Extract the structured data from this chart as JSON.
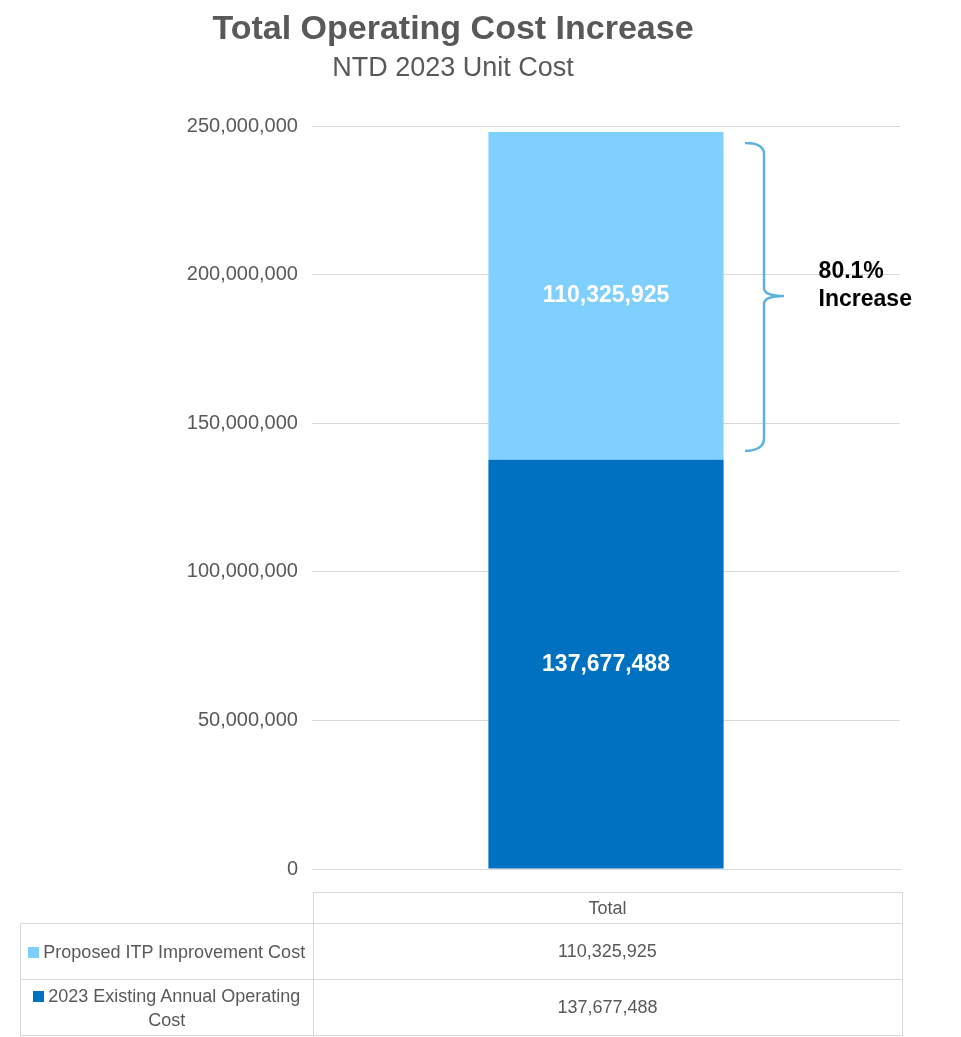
{
  "chart_data": {
    "type": "bar",
    "title": "Total Operating Cost Increase",
    "subtitle": "NTD 2023 Unit Cost",
    "categories": [
      "Total"
    ],
    "stacked": true,
    "series": [
      {
        "name": "2023 Existing Annual Operating Cost",
        "color": "#0070c0",
        "values": [
          137677488
        ],
        "value_labels": [
          "137,677,488"
        ]
      },
      {
        "name": "Proposed ITP Improvement Cost",
        "color": "#7fd0ff",
        "values": [
          110325925
        ],
        "value_labels": [
          "110,325,925"
        ]
      }
    ],
    "ylim": [
      0,
      250000000
    ],
    "yticks": [
      0,
      {
        "value": 50000000,
        "label": "50,000,000"
      },
      {
        "value": 100000000,
        "label": "100,000,000"
      },
      {
        "value": 150000000,
        "label": "150,000,000"
      },
      {
        "value": 200000000,
        "label": "200,000,000"
      },
      {
        "value": 250000000,
        "label": "250,000,000"
      }
    ],
    "grid": "y",
    "legend": "bottom",
    "annotations": [
      "80.1% Increase"
    ]
  }
}
